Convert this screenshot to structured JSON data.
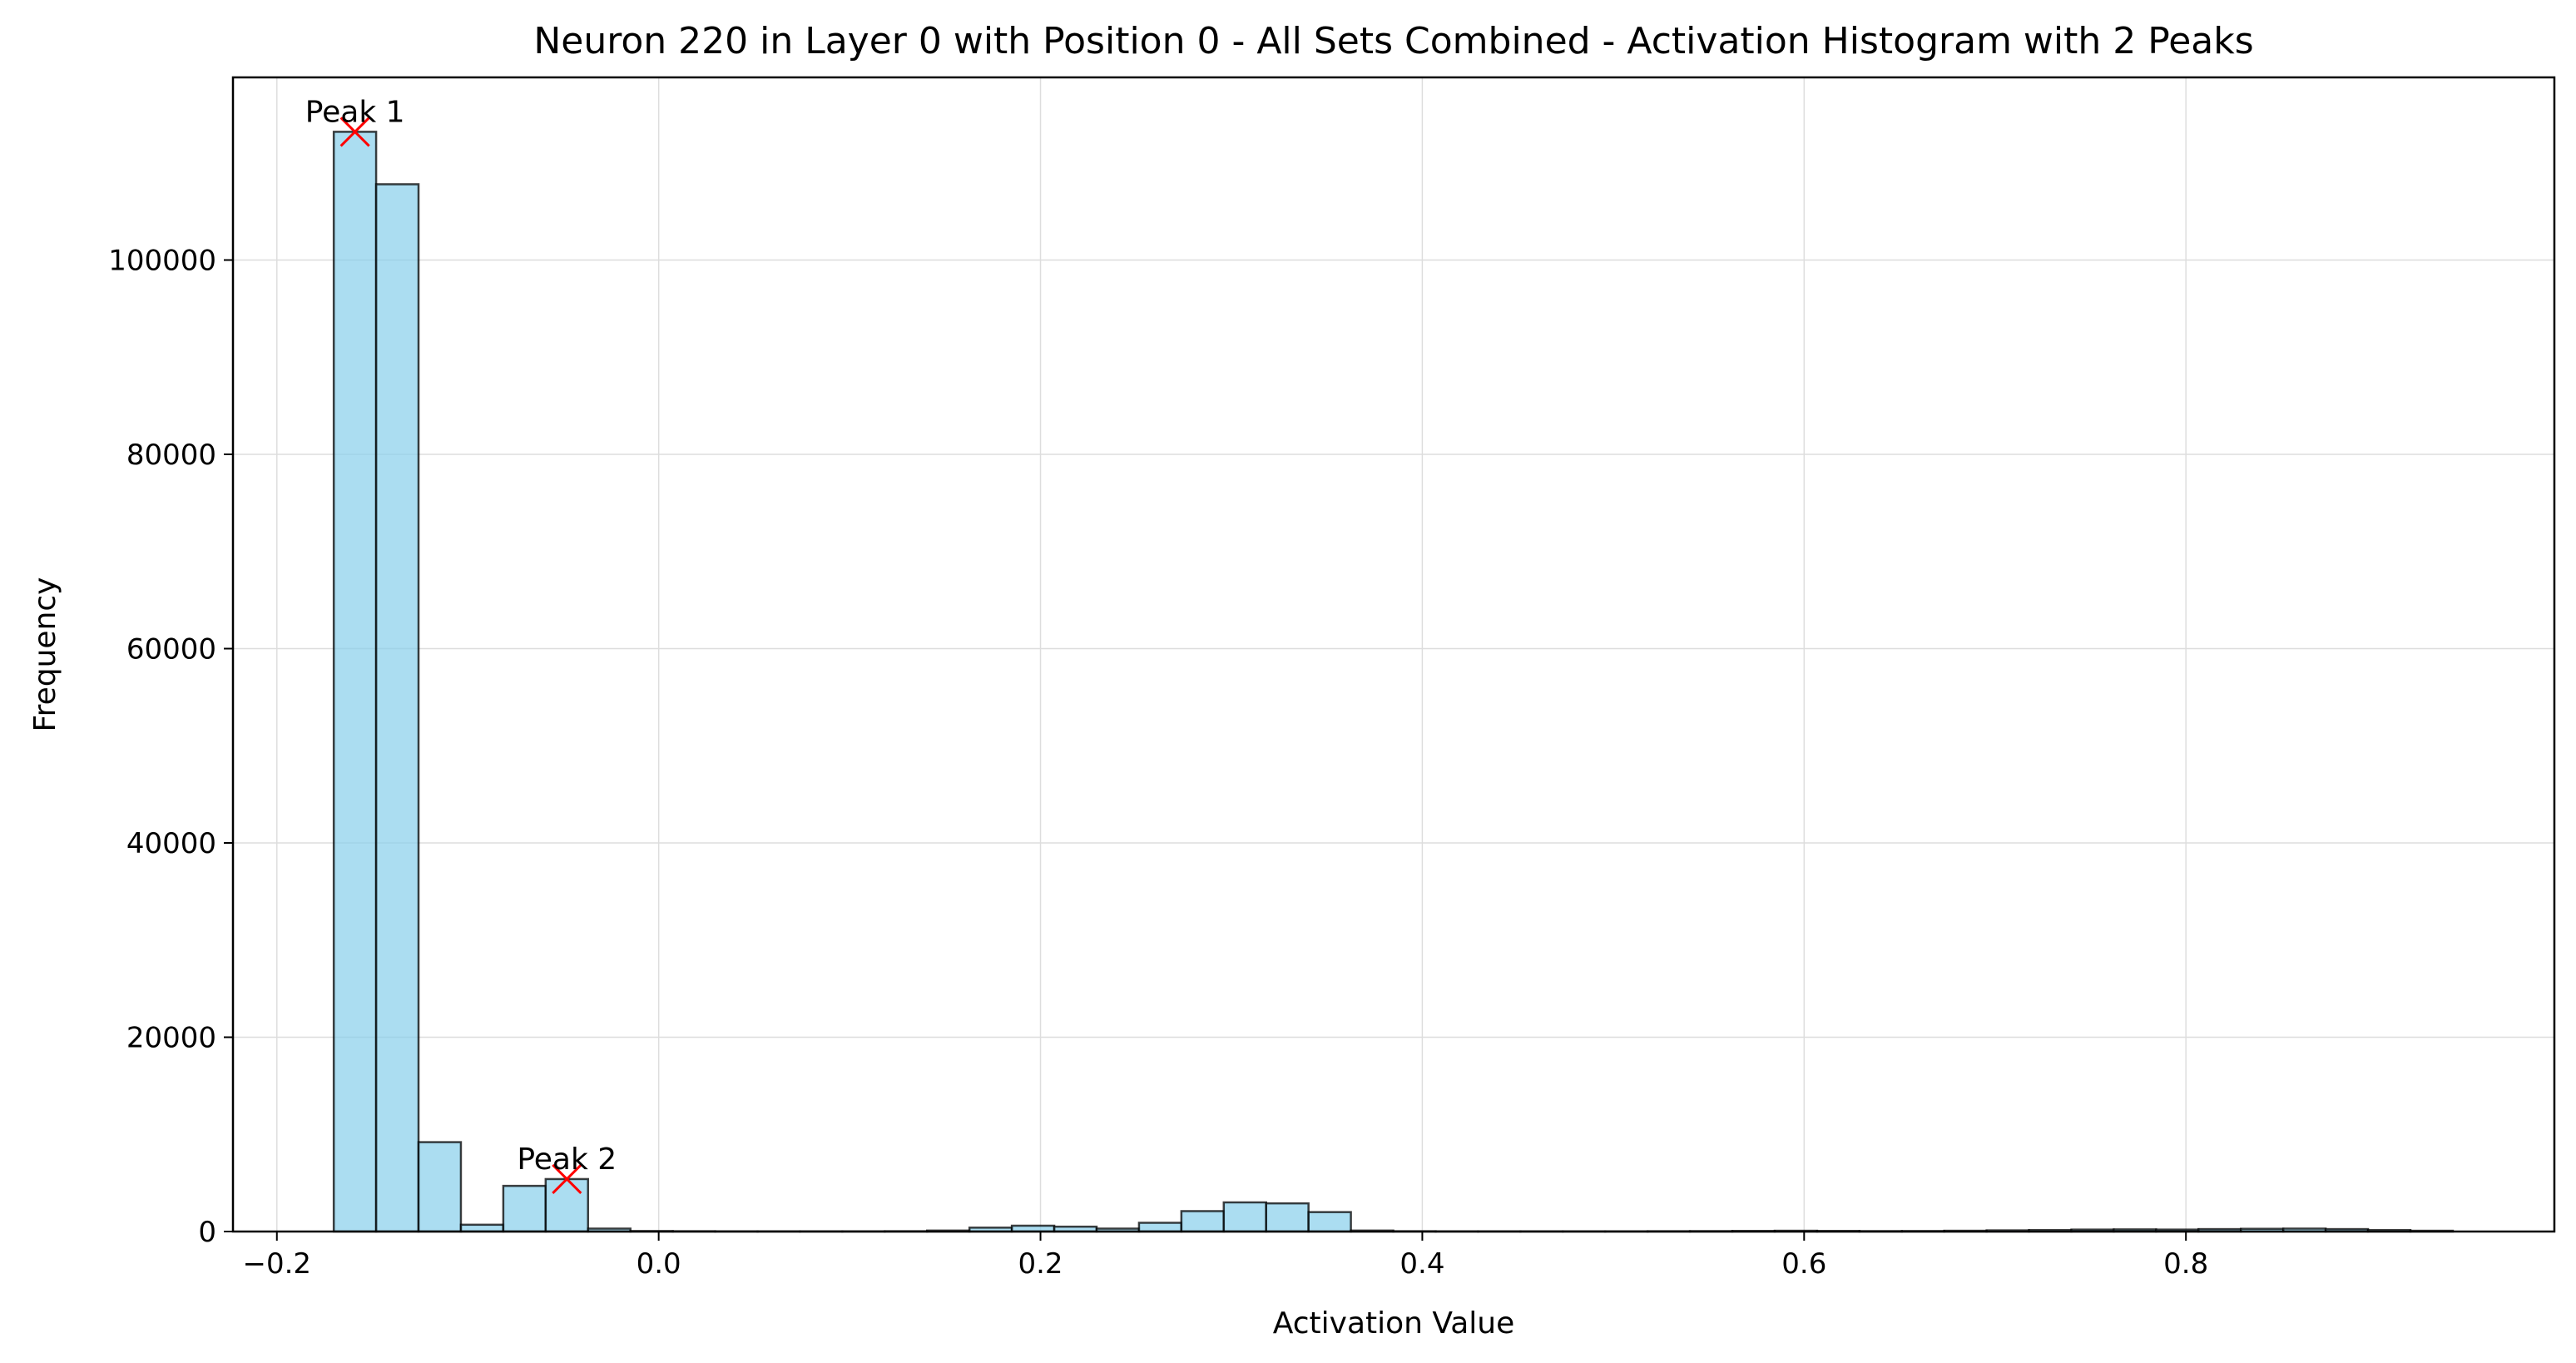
{
  "chart_data": {
    "type": "bar",
    "title": "Neuron 220 in Layer 0 with Position 0 - All Sets Combined - Activation Histogram with 2 Peaks",
    "xlabel": "Activation Value",
    "ylabel": "Frequency",
    "xlim": [
      -0.223,
      0.993
    ],
    "ylim": [
      0,
      118800
    ],
    "xticks": [
      -0.2,
      0.0,
      0.2,
      0.4,
      0.6,
      0.8
    ],
    "xtick_labels": [
      "−0.2",
      "0.0",
      "0.2",
      "0.4",
      "0.6",
      "0.8"
    ],
    "yticks": [
      0,
      20000,
      40000,
      60000,
      80000,
      100000
    ],
    "ytick_labels": [
      "0",
      "20000",
      "40000",
      "60000",
      "80000",
      "100000"
    ],
    "grid": true,
    "bar_color": "#87CEEB",
    "bar_edge_color": "#000000",
    "bin_edges": [
      -0.1702,
      -0.148,
      -0.1258,
      -0.1036,
      -0.0814,
      -0.0592,
      -0.037,
      -0.0148,
      0.0074,
      0.0296,
      0.0518,
      0.074,
      0.0962,
      0.1184,
      0.1406,
      0.1628,
      0.185,
      0.2072,
      0.2294,
      0.2516,
      0.2738,
      0.296,
      0.3182,
      0.3404,
      0.3626,
      0.3848,
      0.407,
      0.4292,
      0.4514,
      0.4736,
      0.4958,
      0.518,
      0.5402,
      0.5624,
      0.5846,
      0.6068,
      0.629,
      0.6512,
      0.6734,
      0.6956,
      0.7178,
      0.74,
      0.7622,
      0.7844,
      0.8066,
      0.8288,
      0.851,
      0.8732,
      0.8954,
      0.9176,
      0.9398
    ],
    "counts": [
      113200,
      107800,
      9200,
      700,
      4700,
      5400,
      300,
      50,
      30,
      20,
      20,
      20,
      20,
      30,
      100,
      400,
      600,
      500,
      300,
      900,
      2100,
      3000,
      2900,
      2000,
      100,
      30,
      20,
      20,
      20,
      20,
      20,
      30,
      40,
      60,
      80,
      60,
      40,
      50,
      80,
      120,
      150,
      200,
      220,
      200,
      250,
      280,
      300,
      250,
      150,
      80
    ],
    "peaks": [
      {
        "label": "Peak 1",
        "x": -0.1591,
        "y": 113200
      },
      {
        "label": "Peak 2",
        "x": -0.0481,
        "y": 5400
      }
    ],
    "peak_marker_color": "#ff0000"
  }
}
